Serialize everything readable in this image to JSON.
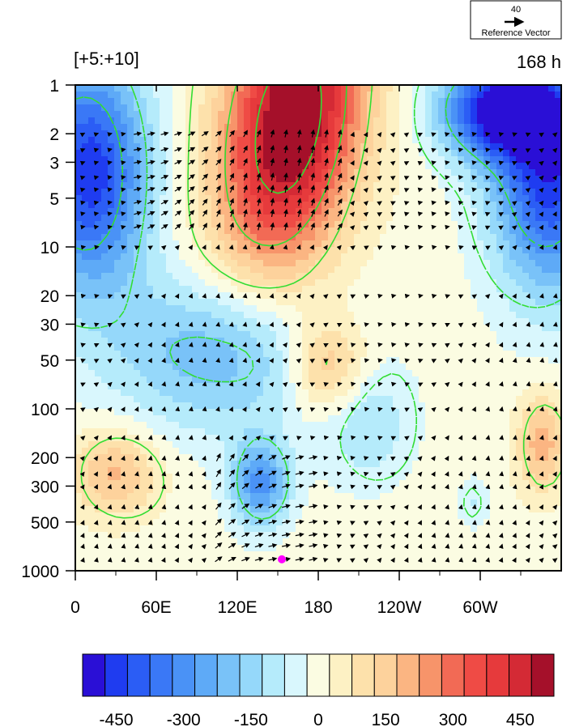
{
  "chart_data": {
    "type": "heatmap",
    "title_left": "[+5:+10]",
    "title_right": "168 h",
    "reference_vector": {
      "magnitude": "40",
      "label": "Reference Vector"
    },
    "x_ticks": [
      "0",
      "60E",
      "120E",
      "180",
      "120W",
      "60W"
    ],
    "x_tick_lon": [
      0,
      60,
      120,
      180,
      240,
      300
    ],
    "x_range": [
      0,
      360
    ],
    "y_scale": "log",
    "y_ticks": [
      "1",
      "2",
      "3",
      "5",
      "10",
      "20",
      "30",
      "50",
      "100",
      "200",
      "300",
      "500",
      "1000"
    ],
    "y_tick_values": [
      1,
      2,
      3,
      5,
      10,
      20,
      30,
      50,
      100,
      200,
      300,
      500,
      1000
    ],
    "y_range": [
      1,
      1000
    ],
    "colorbar": {
      "levels": [
        -525,
        -475,
        -425,
        -375,
        -325,
        -275,
        -225,
        -175,
        -125,
        -75,
        -25,
        25,
        75,
        125,
        175,
        225,
        275,
        325,
        375,
        425,
        475,
        525
      ],
      "tick_labels": [
        "-450",
        "-300",
        "-150",
        "0",
        "150",
        "300",
        "450"
      ],
      "tick_values": [
        -450,
        -300,
        -150,
        0,
        150,
        300,
        450
      ],
      "colors": [
        "#2a0fd6",
        "#1f3cf0",
        "#2b5df5",
        "#3a78f6",
        "#4a92f6",
        "#5eaaf7",
        "#79c2f8",
        "#95d8fa",
        "#b5ebfb",
        "#d9f7fd",
        "#fbfce2",
        "#fdf1c4",
        "#fde1ab",
        "#fdd29c",
        "#fbb582",
        "#f7946a",
        "#f26a55",
        "#ef4b45",
        "#e63a3c",
        "#d42a35",
        "#a5102a"
      ]
    },
    "marker": {
      "lon": 153,
      "pressure": 850,
      "color": "#ff00ff"
    },
    "field_description_colors": {
      "contour_line": "#33dd33",
      "vector": "#000000"
    }
  }
}
